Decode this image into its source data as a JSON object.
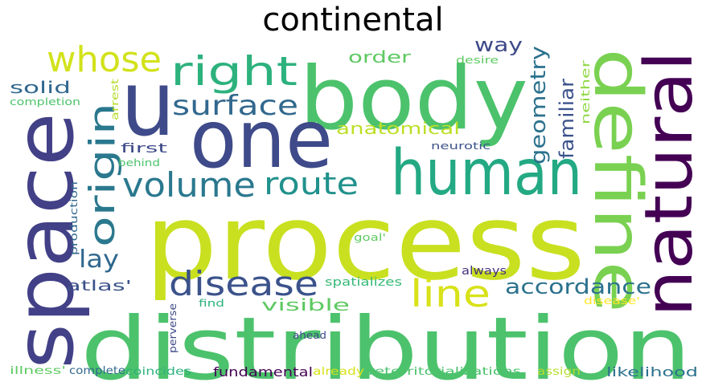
{
  "title": "continental",
  "words": [
    {
      "text": "process",
      "color": "#c8e020"
    },
    {
      "text": "distribution",
      "color": "#4cc26c"
    },
    {
      "text": "body",
      "color": "#4cc26c"
    },
    {
      "text": "one",
      "color": "#3e4a89"
    },
    {
      "text": "space",
      "color": "#424086"
    },
    {
      "text": "human",
      "color": "#23a983"
    },
    {
      "text": "define",
      "color": "#7ad151"
    },
    {
      "text": "natural",
      "color": "#440154"
    },
    {
      "text": "u",
      "color": "#3e4a89"
    },
    {
      "text": "right",
      "color": "#2db27d"
    },
    {
      "text": "whose",
      "color": "#d2e21b"
    },
    {
      "text": "origin",
      "color": "#2a788e"
    },
    {
      "text": "surface",
      "color": "#31688e"
    },
    {
      "text": "volume",
      "color": "#2a788e"
    },
    {
      "text": "route",
      "color": "#21918c"
    },
    {
      "text": "disease",
      "color": "#3b528b"
    },
    {
      "text": "line",
      "color": "#d8e219"
    },
    {
      "text": "accordance",
      "color": "#2c728e"
    },
    {
      "text": "geometry",
      "color": "#2c728e"
    },
    {
      "text": "familiar",
      "color": "#3b528b"
    },
    {
      "text": "anatomical",
      "color": "#bddf26"
    },
    {
      "text": "way",
      "color": "#3e4a89"
    },
    {
      "text": "order",
      "color": "#5ec962"
    },
    {
      "text": "lay",
      "color": "#31688e"
    },
    {
      "text": "atlas'",
      "color": "#3b528b"
    },
    {
      "text": "visible",
      "color": "#5ec962"
    },
    {
      "text": "solid",
      "color": "#31688e"
    },
    {
      "text": "first",
      "color": "#3e4a89"
    },
    {
      "text": "neither",
      "color": "#8fd744"
    },
    {
      "text": "desire",
      "color": "#5ec962"
    },
    {
      "text": "arrest",
      "color": "#b5de2b"
    },
    {
      "text": "completion",
      "color": "#4cc26c"
    },
    {
      "text": "behind",
      "color": "#4cc26c"
    },
    {
      "text": "neurotic",
      "color": "#3b528b"
    },
    {
      "text": "production",
      "color": "#31688e"
    },
    {
      "text": "goal'",
      "color": "#5ec962"
    },
    {
      "text": "spatializes",
      "color": "#38b977"
    },
    {
      "text": "always",
      "color": "#46327e"
    },
    {
      "text": "disease'",
      "color": "#fde725"
    },
    {
      "text": "find",
      "color": "#2db27d"
    },
    {
      "text": "perverse",
      "color": "#3e4a89"
    },
    {
      "text": "ahead",
      "color": "#3e4a89"
    },
    {
      "text": "fundamental",
      "color": "#440154"
    },
    {
      "text": "coincides",
      "color": "#2db27d"
    },
    {
      "text": "complete",
      "color": "#31688e"
    },
    {
      "text": "illness'",
      "color": "#5ec962"
    },
    {
      "text": "already",
      "color": "#d8e219"
    },
    {
      "text": "reterritorializations",
      "color": "#4cc26c"
    },
    {
      "text": "assign",
      "color": "#b5de2b"
    },
    {
      "text": "likelihood",
      "color": "#2c728e"
    }
  ]
}
